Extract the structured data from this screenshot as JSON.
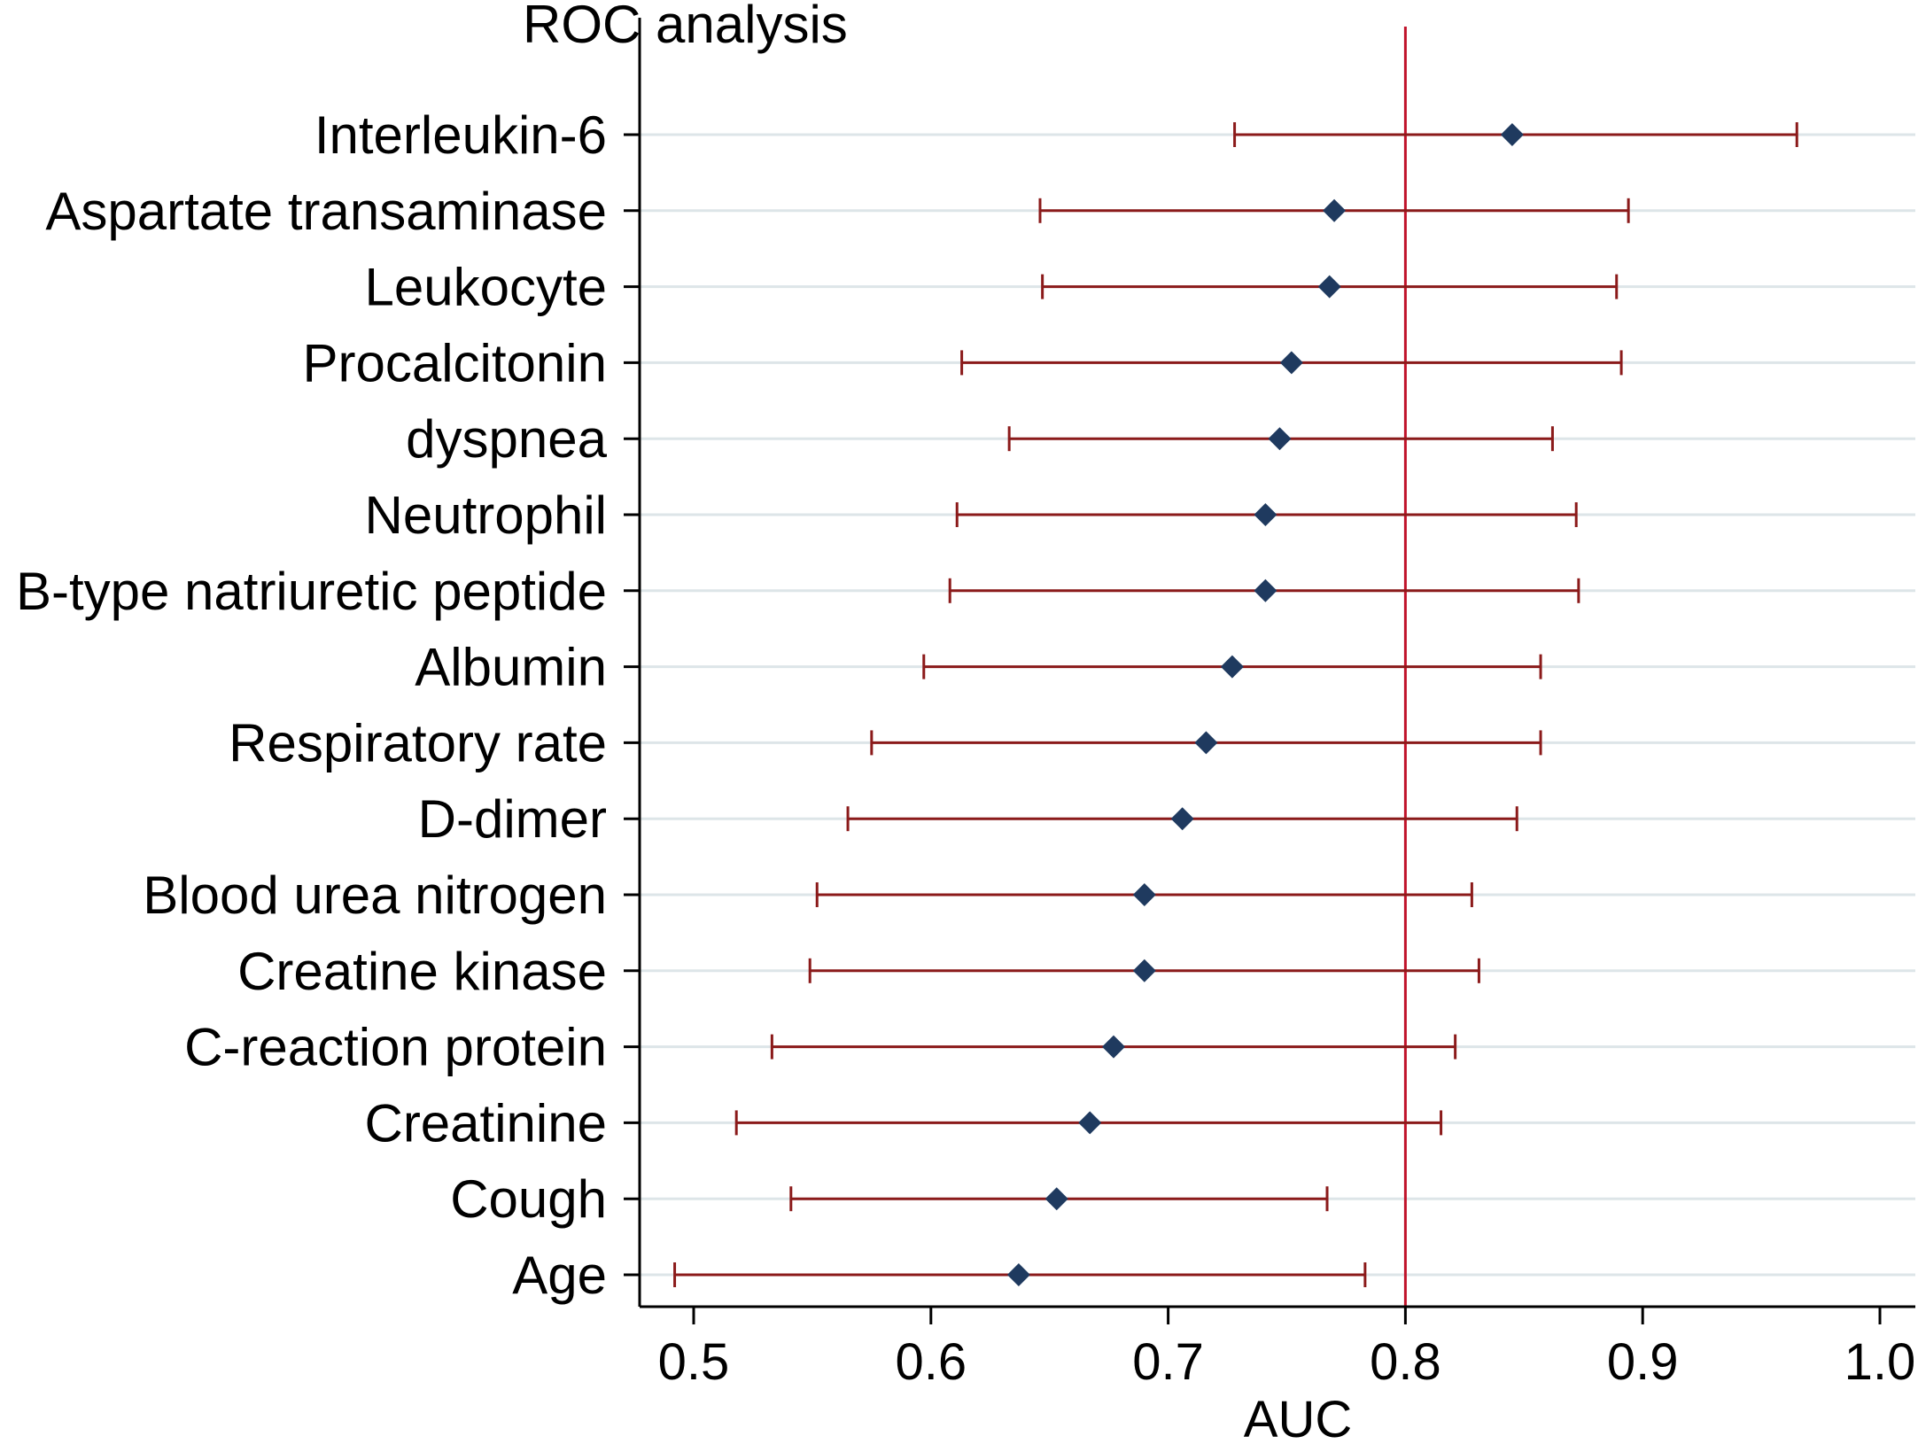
{
  "chart_data": {
    "type": "forest",
    "title": "ROC analysis",
    "xlabel": "AUC",
    "ylabel": "",
    "xlim": [
      0.5,
      1.0
    ],
    "xticks": [
      0.5,
      0.6,
      0.7,
      0.8,
      0.9,
      1.0
    ],
    "xtick_labels": [
      "0.5",
      "0.6",
      "0.7",
      "0.8",
      "0.9",
      "1.0"
    ],
    "reference_line": 0.8,
    "grid": "horizontal",
    "series": [
      {
        "label": "Interleukin-6",
        "auc": 0.845,
        "lower": 0.728,
        "upper": 0.965
      },
      {
        "label": "Aspartate transaminase",
        "auc": 0.77,
        "lower": 0.646,
        "upper": 0.894
      },
      {
        "label": "Leukocyte",
        "auc": 0.768,
        "lower": 0.647,
        "upper": 0.889
      },
      {
        "label": "Procalcitonin",
        "auc": 0.752,
        "lower": 0.613,
        "upper": 0.891
      },
      {
        "label": "dyspnea",
        "auc": 0.747,
        "lower": 0.633,
        "upper": 0.862
      },
      {
        "label": "Neutrophil",
        "auc": 0.741,
        "lower": 0.611,
        "upper": 0.872
      },
      {
        "label": "B-type natriuretic peptide",
        "auc": 0.741,
        "lower": 0.608,
        "upper": 0.873
      },
      {
        "label": "Albumin",
        "auc": 0.727,
        "lower": 0.597,
        "upper": 0.857
      },
      {
        "label": "Respiratory rate",
        "auc": 0.716,
        "lower": 0.575,
        "upper": 0.857
      },
      {
        "label": "D-dimer",
        "auc": 0.706,
        "lower": 0.565,
        "upper": 0.847
      },
      {
        "label": "Blood urea nitrogen",
        "auc": 0.69,
        "lower": 0.552,
        "upper": 0.828
      },
      {
        "label": "Creatine kinase",
        "auc": 0.69,
        "lower": 0.549,
        "upper": 0.831
      },
      {
        "label": "C-reaction protein",
        "auc": 0.677,
        "lower": 0.533,
        "upper": 0.821
      },
      {
        "label": "Creatinine",
        "auc": 0.667,
        "lower": 0.518,
        "upper": 0.815
      },
      {
        "label": "Cough",
        "auc": 0.653,
        "lower": 0.541,
        "upper": 0.767
      },
      {
        "label": "Age",
        "auc": 0.637,
        "lower": 0.492,
        "upper": 0.783
      }
    ],
    "colors": {
      "ci_line": "#8b1a1a",
      "marker": "#1f3a5f",
      "reference_line": "#c0132a",
      "grid": "#dde5e8",
      "axis": "#000000"
    }
  }
}
